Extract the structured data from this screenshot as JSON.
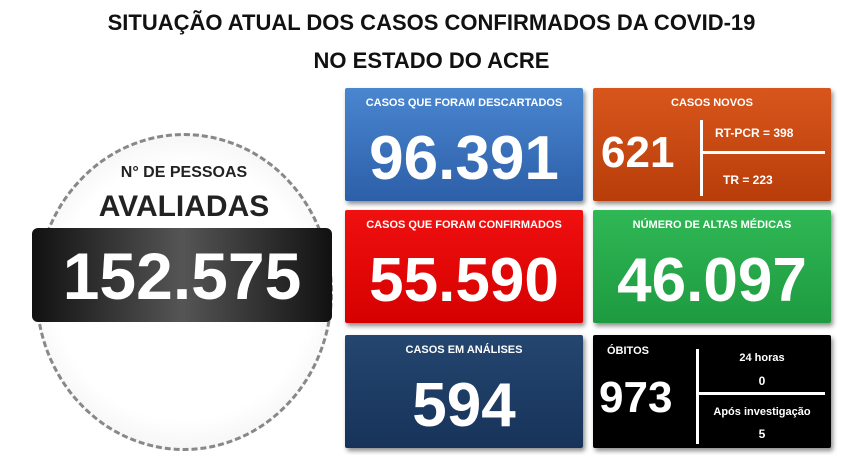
{
  "header": {
    "title_line1": "SITUAÇÃO ATUAL DOS CASOS CONFIRMADOS DA COVID-19",
    "title_line2": "NO ESTADO DO ACRE"
  },
  "evaluated": {
    "label": "N° DE PESSOAS",
    "label_emphasis": "AVALIADAS",
    "value": "152.575"
  },
  "cards": [
    {
      "title": "CASOS QUE FORAM DESCARTADOS",
      "value": "96.391"
    },
    {
      "title": "CASOS NOVOS",
      "value": "621",
      "breakdown": [
        "RT-PCR = 398",
        "TR = 223"
      ]
    },
    {
      "title": "CASOS QUE FORAM CONFIRMADOS",
      "value": "55.590"
    },
    {
      "title": "NÚMERO DE ALTAS MÉDICAS",
      "value": "46.097"
    },
    {
      "title": "CASOS EM ANÁLISES",
      "value": "594"
    },
    {
      "title": "ÓBITOS",
      "value": "973",
      "breakdown": [
        "24 horas",
        "0",
        "Após investigação",
        "5"
      ]
    }
  ]
}
